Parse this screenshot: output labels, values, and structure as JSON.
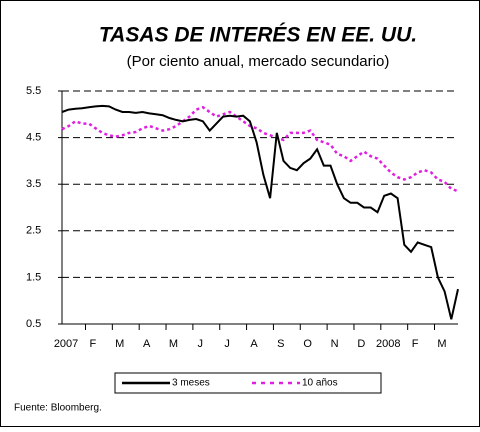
{
  "chart_data": {
    "type": "line",
    "title": "TASAS DE INTERÉS EN EE. UU.",
    "subtitle": "(Por ciento anual, mercado secundario)",
    "source": "Fuente: Bloomberg.",
    "categories": [
      "2007",
      null,
      null,
      null,
      "F",
      null,
      null,
      null,
      "M",
      null,
      null,
      null,
      "A",
      null,
      null,
      null,
      "M",
      null,
      null,
      null,
      "J",
      null,
      null,
      null,
      "J",
      null,
      null,
      null,
      "A",
      null,
      null,
      null,
      "S",
      null,
      null,
      null,
      "O",
      null,
      null,
      null,
      "N",
      null,
      null,
      null,
      "D",
      null,
      null,
      null,
      "2008",
      null,
      null,
      null,
      "F",
      null,
      null,
      null,
      "M",
      null,
      null,
      null
    ],
    "series": [
      {
        "name": "3 meses",
        "color": "#000000",
        "values": [
          5.05,
          5.1,
          5.12,
          5.13,
          5.15,
          5.17,
          5.18,
          5.17,
          5.1,
          5.05,
          5.05,
          5.03,
          5.05,
          5.02,
          5.0,
          4.98,
          4.92,
          4.88,
          4.85,
          4.88,
          4.9,
          4.85,
          4.65,
          4.8,
          4.95,
          4.97,
          4.95,
          4.97,
          4.85,
          4.4,
          3.7,
          3.2,
          4.6,
          4.0,
          3.85,
          3.8,
          3.95,
          4.05,
          4.25,
          3.9,
          3.9,
          3.5,
          3.2,
          3.1,
          3.1,
          3.0,
          3.0,
          2.9,
          3.25,
          3.3,
          3.2,
          2.2,
          2.05,
          2.25,
          2.2,
          2.15,
          1.5,
          1.2,
          0.6,
          1.25
        ]
      },
      {
        "name": "10 años",
        "color": "#e020e0",
        "values": [
          4.68,
          4.75,
          4.85,
          4.8,
          4.8,
          4.7,
          4.6,
          4.55,
          4.52,
          4.55,
          4.6,
          4.62,
          4.7,
          4.75,
          4.7,
          4.65,
          4.68,
          4.75,
          4.85,
          4.95,
          5.1,
          5.15,
          5.05,
          4.95,
          5.0,
          5.05,
          4.95,
          4.85,
          4.75,
          4.7,
          4.6,
          4.55,
          4.5,
          4.45,
          4.6,
          4.6,
          4.6,
          4.65,
          4.45,
          4.4,
          4.35,
          4.15,
          4.1,
          4.0,
          4.1,
          4.2,
          4.1,
          4.05,
          3.9,
          3.75,
          3.65,
          3.6,
          3.65,
          3.75,
          3.8,
          3.75,
          3.6,
          3.55,
          3.4,
          3.35
        ]
      }
    ],
    "ylim": [
      0.5,
      5.5
    ],
    "yticks": [
      0.5,
      1.5,
      2.5,
      3.5,
      4.5,
      5.5
    ],
    "grid": true,
    "legend": "bottom"
  }
}
